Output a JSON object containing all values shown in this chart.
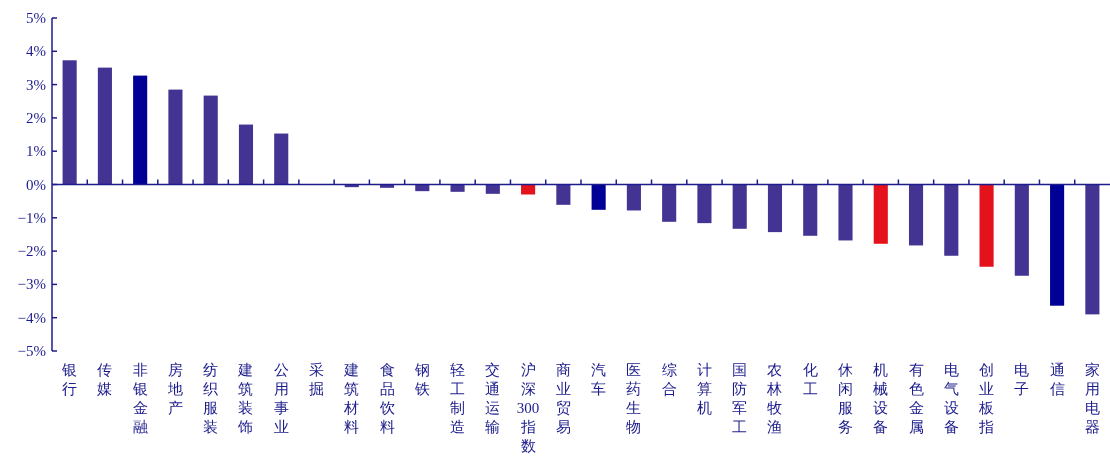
{
  "chart_data": {
    "type": "bar",
    "categories": [
      "银行",
      "传媒",
      "非银金融",
      "房地产",
      "纺织服装",
      "建筑装饰",
      "公用事业",
      "采掘",
      "建筑材料",
      "食品饮料",
      "钢铁",
      "轻工制造",
      "交通运输",
      "沪深300指数",
      "商业贸易",
      "汽车",
      "医药生物",
      "综合",
      "计算机",
      "国防军工",
      "农林牧渔",
      "化工",
      "休闲服务",
      "机械设备",
      "有色金属",
      "电气设备",
      "创业板指",
      "电子",
      "通信",
      "家用电器"
    ],
    "values": [
      3.73,
      3.51,
      3.27,
      2.85,
      2.67,
      1.8,
      1.53,
      0,
      -0.08,
      -0.1,
      -0.2,
      -0.22,
      -0.28,
      -0.3,
      -0.61,
      -0.76,
      -0.78,
      -1.12,
      -1.16,
      -1.33,
      -1.43,
      -1.54,
      -1.68,
      -1.78,
      -1.83,
      -2.14,
      -2.47,
      -2.74,
      -3.64,
      -3.9
    ],
    "colors": [
      "#433393",
      "#433393",
      "#000096",
      "#433393",
      "#433393",
      "#433393",
      "#433393",
      "#433393",
      "#433393",
      "#433393",
      "#433393",
      "#433393",
      "#433393",
      "#e3121b",
      "#433393",
      "#000096",
      "#433393",
      "#433393",
      "#433393",
      "#433393",
      "#433393",
      "#433393",
      "#433393",
      "#e3121b",
      "#433393",
      "#433393",
      "#e3121b",
      "#433393",
      "#000096",
      "#433393"
    ],
    "ylim": [
      -5,
      5
    ],
    "yticks": [
      {
        "value": -5,
        "label": "−5%"
      },
      {
        "value": -4,
        "label": "−4%"
      },
      {
        "value": -3,
        "label": "−3%"
      },
      {
        "value": -2,
        "label": "−2%"
      },
      {
        "value": -1,
        "label": "−1%"
      },
      {
        "value": 0,
        "label": "0%"
      },
      {
        "value": 1,
        "label": "1%"
      },
      {
        "value": 2,
        "label": "2%"
      },
      {
        "value": 3,
        "label": "3%"
      },
      {
        "value": 4,
        "label": "4%"
      },
      {
        "value": 5,
        "label": "5%"
      }
    ],
    "ref_lines": [
      {
        "axis": "y",
        "value": 0,
        "color": "#1c1c8c"
      }
    ],
    "grid": false
  }
}
